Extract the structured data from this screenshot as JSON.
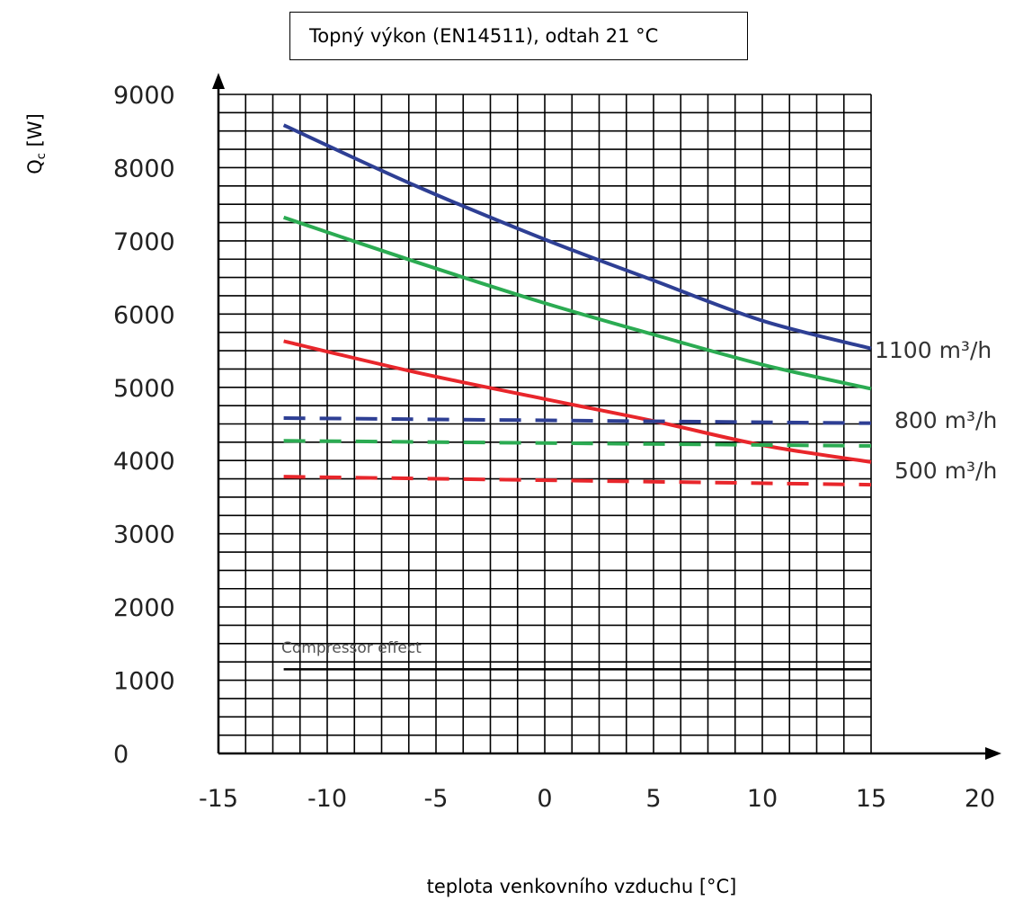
{
  "chart_data": {
    "type": "line",
    "title": "Topný výkon (EN14511), odtah 21 °C",
    "xlabel": "teplota venkovního vzduchu [°C]",
    "ylabel": "Q",
    "ylabel_sub": "c",
    "ylabel_unit": " [W]",
    "xlim": [
      -15,
      20
    ],
    "ylim": [
      0,
      9000
    ],
    "xticks": [
      -15,
      -10,
      -5,
      0,
      5,
      10,
      15,
      20
    ],
    "yticks": [
      0,
      1000,
      2000,
      3000,
      4000,
      5000,
      6000,
      7000,
      8000,
      9000
    ],
    "grid": true,
    "series": [
      {
        "name": "1100 m³/h",
        "style": "solid",
        "color": "#2e3f94",
        "x": [
          -12,
          -6,
          0,
          5,
          10,
          15
        ],
        "y": [
          8580,
          7760,
          7020,
          6460,
          5910,
          5530
        ]
      },
      {
        "name": "800 m³/h",
        "style": "solid",
        "color": "#2bab52",
        "x": [
          -12,
          -6,
          0,
          5,
          10,
          15
        ],
        "y": [
          7320,
          6720,
          6150,
          5720,
          5310,
          4980
        ]
      },
      {
        "name": "500 m³/h",
        "style": "solid",
        "color": "#e8262b",
        "x": [
          -12,
          -6,
          0,
          5,
          10,
          15
        ],
        "y": [
          5630,
          5210,
          4840,
          4540,
          4210,
          3980
        ]
      },
      {
        "name": "",
        "style": "dashed",
        "color": "#2e3f94",
        "x": [
          -12,
          15
        ],
        "y": [
          4580,
          4510
        ]
      },
      {
        "name": "",
        "style": "dashed",
        "color": "#2bab52",
        "x": [
          -12,
          15
        ],
        "y": [
          4270,
          4200
        ]
      },
      {
        "name": "",
        "style": "dashed",
        "color": "#e8262b",
        "x": [
          -12,
          15
        ],
        "y": [
          3780,
          3670
        ]
      },
      {
        "name": "Compressor effect",
        "style": "solid",
        "color": "#000000",
        "x": [
          -12,
          15
        ],
        "y": [
          1150,
          1150
        ]
      }
    ],
    "labels": {
      "s1100": "1100 m³/h",
      "s800": "800 m³/h",
      "s500": "500 m³/h",
      "compressor": "Compressor effect"
    }
  }
}
